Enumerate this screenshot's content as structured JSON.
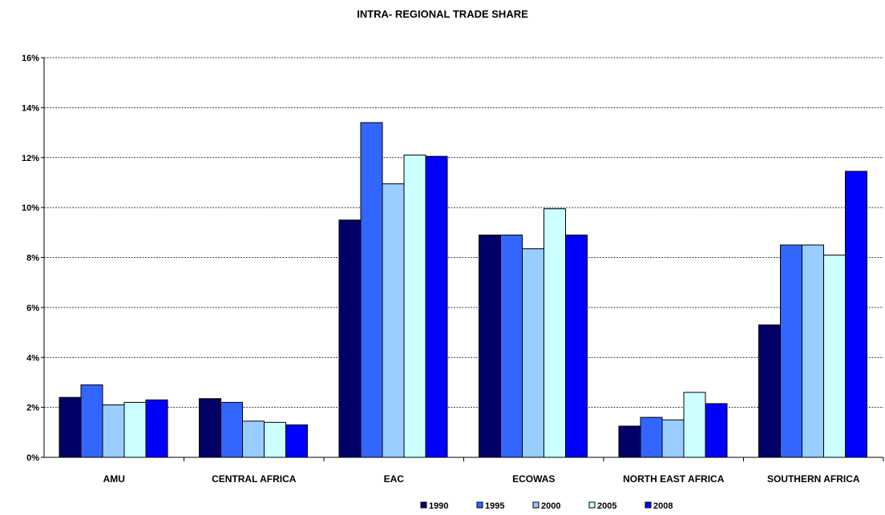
{
  "chart_data": {
    "type": "bar",
    "title": "INTRA- REGIONAL TRADE SHARE",
    "xlabel": "",
    "ylabel": "",
    "ylim": [
      0,
      16
    ],
    "y_ticks": [
      "0%",
      "2%",
      "4%",
      "6%",
      "8%",
      "10%",
      "12%",
      "14%",
      "16%"
    ],
    "y_tick_values": [
      0,
      2,
      4,
      6,
      8,
      10,
      12,
      14,
      16
    ],
    "grid": true,
    "legend_position": "bottom",
    "categories": [
      "AMU",
      "CENTRAL AFRICA",
      "EAC",
      "ECOWAS",
      "NORTH EAST AFRICA",
      "SOUTHERN AFRICA"
    ],
    "series": [
      {
        "name": "1990",
        "color": "#000066",
        "values": [
          2.4,
          2.35,
          9.5,
          8.9,
          1.25,
          5.3
        ]
      },
      {
        "name": "1995",
        "color": "#3366ff",
        "values": [
          2.9,
          2.2,
          13.4,
          8.9,
          1.6,
          8.5
        ]
      },
      {
        "name": "2000",
        "color": "#99ccff",
        "values": [
          2.1,
          1.45,
          10.95,
          8.35,
          1.5,
          8.5
        ]
      },
      {
        "name": "2005",
        "color": "#ccffff",
        "values": [
          2.2,
          1.4,
          12.1,
          9.95,
          2.6,
          8.1
        ]
      },
      {
        "name": "2008",
        "color": "#0000ff",
        "values": [
          2.3,
          1.3,
          12.05,
          8.9,
          2.15,
          11.45
        ]
      }
    ]
  }
}
